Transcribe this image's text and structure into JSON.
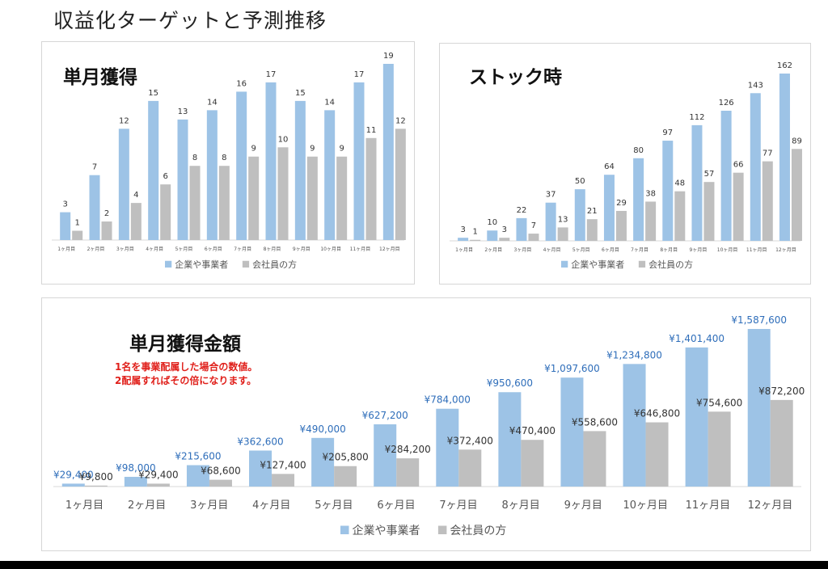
{
  "page": {
    "title": "収益化ターゲットと予測推移"
  },
  "colors": {
    "series1": "#9dc3e6",
    "series2": "#bfbfbf",
    "axis": "#d9d9d9",
    "value_label": "#333333",
    "money_label": "#2f6eba",
    "note": "#e0201b"
  },
  "legend": {
    "series1": "企業や事業者",
    "series2": "会社員の方"
  },
  "charts": {
    "monthly": {
      "title": "単月獲得"
    },
    "stock": {
      "title": "ストック時"
    },
    "amount": {
      "title": "単月獲得金額",
      "note_lines": [
        "1名を事業配属した場合の数値。",
        "2配属すればその倍になります。"
      ]
    }
  },
  "chart_data": [
    {
      "type": "bar",
      "title": "単月獲得",
      "categories": [
        "1ヶ月目",
        "2ヶ月目",
        "3ヶ月目",
        "4ヶ月目",
        "5ヶ月目",
        "6ヶ月目",
        "7ヶ月目",
        "8ヶ月目",
        "9ヶ月目",
        "10ヶ月目",
        "11ヶ月目",
        "12ヶ月目"
      ],
      "series": [
        {
          "name": "企業や事業者",
          "values": [
            3,
            7,
            12,
            15,
            13,
            14,
            16,
            17,
            15,
            14,
            17,
            19
          ]
        },
        {
          "name": "会社員の方",
          "values": [
            1,
            2,
            4,
            6,
            8,
            8,
            9,
            10,
            9,
            9,
            11,
            12
          ]
        }
      ],
      "ylim": [
        0,
        19
      ],
      "legend": "bottom"
    },
    {
      "type": "bar",
      "title": "ストック時",
      "categories": [
        "1ヶ月目",
        "2ヶ月目",
        "3ヶ月目",
        "4ヶ月目",
        "5ヶ月目",
        "6ヶ月目",
        "7ヶ月目",
        "8ヶ月目",
        "9ヶ月目",
        "10ヶ月目",
        "11ヶ月目",
        "12ヶ月目"
      ],
      "series": [
        {
          "name": "企業や事業者",
          "values": [
            3,
            10,
            22,
            37,
            50,
            64,
            80,
            97,
            112,
            126,
            143,
            162
          ]
        },
        {
          "name": "会社員の方",
          "values": [
            1,
            3,
            7,
            13,
            21,
            29,
            38,
            48,
            57,
            66,
            77,
            89
          ]
        }
      ],
      "ylim": [
        0,
        162
      ],
      "legend": "bottom"
    },
    {
      "type": "bar",
      "title": "単月獲得金額",
      "categories": [
        "1ヶ月目",
        "2ヶ月目",
        "3ヶ月目",
        "4ヶ月目",
        "5ヶ月目",
        "6ヶ月目",
        "7ヶ月目",
        "8ヶ月目",
        "9ヶ月目",
        "10ヶ月目",
        "11ヶ月目",
        "12ヶ月目"
      ],
      "series": [
        {
          "name": "企業や事業者",
          "values": [
            29400,
            98000,
            215600,
            362600,
            490000,
            627200,
            784000,
            950600,
            1097600,
            1234800,
            1401400,
            1587600
          ]
        },
        {
          "name": "会社員の方",
          "values": [
            9800,
            29400,
            68600,
            127400,
            205800,
            284200,
            372400,
            470400,
            558600,
            646800,
            754600,
            872200
          ]
        }
      ],
      "ylim": [
        0,
        1587600
      ],
      "legend": "bottom"
    }
  ]
}
